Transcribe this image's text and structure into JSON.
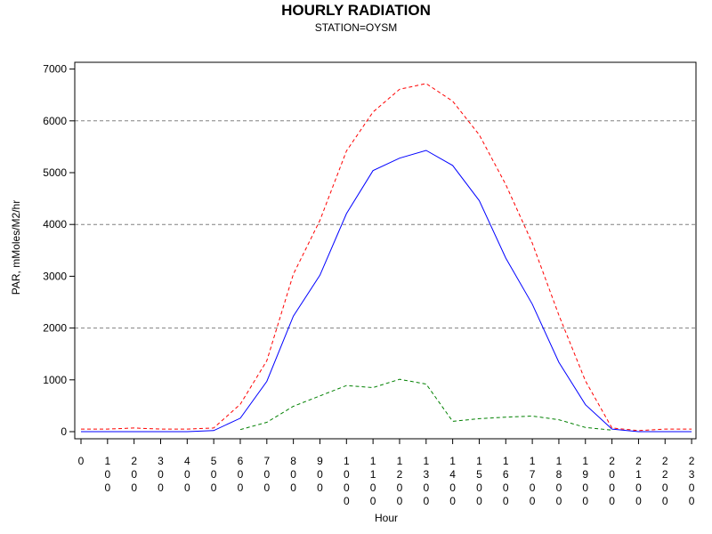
{
  "chart_data": {
    "type": "line",
    "title": "HOURLY RADIATION",
    "subtitle": "STATION=OYSM",
    "xlabel": "Hour",
    "ylabel": "PAR, mMoles/M2/hr",
    "ylim": [
      -100,
      7200
    ],
    "yticks": [
      0,
      1000,
      2000,
      3000,
      4000,
      5000,
      6000,
      7000
    ],
    "ytick_labels": [
      "0",
      "1000",
      "2000",
      "3000",
      "4000",
      "5000",
      "6000",
      "7000"
    ],
    "x_tick_labels": [
      "0",
      "100",
      "200",
      "300",
      "400",
      "500",
      "600",
      "700",
      "800",
      "900",
      "1000",
      "1100",
      "1200",
      "1300",
      "1400",
      "1500",
      "1600",
      "1700",
      "1800",
      "1900",
      "2000",
      "2100",
      "2200",
      "2300"
    ],
    "grid": "horizontal dashed at 2000, 4000, 6000",
    "series": [
      {
        "color": "#ff0000",
        "style": "dashed",
        "x": [
          0,
          100,
          200,
          300,
          400,
          500,
          600,
          700,
          800,
          900,
          1000,
          1100,
          1200,
          1300,
          1400,
          1500,
          1600,
          1700,
          1800,
          1900,
          2000,
          2100,
          2200,
          2300
        ],
        "values": [
          50,
          50,
          70,
          50,
          50,
          70,
          530,
          1370,
          3040,
          4080,
          5420,
          6170,
          6610,
          6720,
          6380,
          5730,
          4770,
          3640,
          2250,
          980,
          70,
          20,
          50,
          50
        ]
      },
      {
        "color": "#0000ff",
        "style": "solid",
        "x": [
          0,
          100,
          200,
          300,
          400,
          500,
          600,
          700,
          800,
          900,
          1000,
          1100,
          1200,
          1300,
          1400,
          1500,
          1600,
          1700,
          1800,
          1900,
          2000,
          2100,
          2200,
          2300
        ],
        "values": [
          0,
          0,
          0,
          0,
          0,
          20,
          260,
          970,
          2230,
          3020,
          4210,
          5040,
          5280,
          5430,
          5140,
          4460,
          3350,
          2460,
          1340,
          520,
          50,
          0,
          0,
          0
        ]
      },
      {
        "color": "#008000",
        "style": "dashed",
        "x": [
          600,
          700,
          800,
          900,
          1000,
          1100,
          1200,
          1300,
          1400,
          1500,
          1600,
          1700,
          1800,
          1900,
          2000
        ],
        "values": [
          40,
          180,
          490,
          690,
          890,
          850,
          1010,
          920,
          200,
          250,
          280,
          300,
          230,
          80,
          30
        ]
      }
    ]
  }
}
